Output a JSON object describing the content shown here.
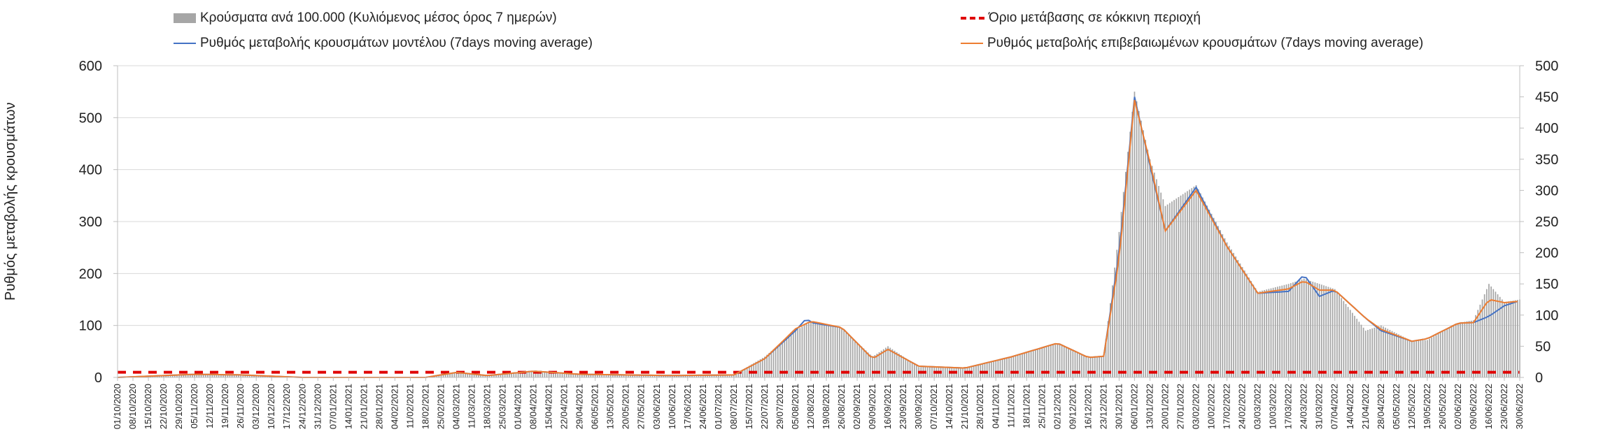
{
  "legend": {
    "bars": "Κρούσματα ανά 100.000 (Κυλιόμενος μέσος όρος 7 ημερών)",
    "threshold": "Όριο μετάβασης σε κόκκινη περιοχή",
    "model": "Ρυθμός μεταβολής κρουσμάτων μοντέλου (7days moving average)",
    "confirmed": "Ρυθμός μεταβολής επιβεβαιωμένων κρουσμάτων (7days moving average)"
  },
  "chart_data": {
    "type": "bar",
    "title": "",
    "ylabel": "Ρυθμός μεταβολής κρουσμάτων",
    "ylim": [
      0,
      600
    ],
    "y_ticks": [
      0,
      100,
      200,
      300,
      400,
      500,
      600
    ],
    "y2lim": [
      0,
      500
    ],
    "y2_ticks": [
      0,
      50,
      100,
      150,
      200,
      250,
      300,
      350,
      400,
      450,
      500
    ],
    "grid": true,
    "legend_position": "top",
    "x_date_range": [
      "2020-10-01",
      "2022-06-30"
    ],
    "x_tick_labels": [
      "01/10/2020",
      "08/10/2020",
      "15/10/2020",
      "22/10/2020",
      "29/10/2020",
      "05/11/2020",
      "12/11/2020",
      "19/11/2020",
      "26/11/2020",
      "03/12/2020",
      "10/12/2020",
      "17/12/2020",
      "24/12/2020",
      "31/12/2020",
      "07/01/2021",
      "14/01/2021",
      "21/01/2021",
      "28/01/2021",
      "04/02/2021",
      "11/02/2021",
      "18/02/2021",
      "25/02/2021",
      "04/03/2021",
      "11/03/2021",
      "18/03/2021",
      "25/03/2021",
      "01/04/2021",
      "08/04/2021",
      "15/04/2021",
      "22/04/2021",
      "29/04/2021",
      "06/05/2021",
      "13/05/2021",
      "20/05/2021",
      "27/05/2021",
      "03/06/2021",
      "10/06/2021",
      "17/06/2021",
      "24/06/2021",
      "01/07/2021",
      "08/07/2021",
      "15/07/2021",
      "22/07/2021",
      "29/07/2021",
      "05/08/2021",
      "12/08/2021",
      "19/08/2021",
      "26/08/2021",
      "02/09/2021",
      "09/09/2021",
      "16/09/2021",
      "23/09/2021",
      "30/09/2021",
      "07/10/2021",
      "14/10/2021",
      "21/10/2021",
      "28/10/2021",
      "04/11/2021",
      "11/11/2021",
      "18/11/2021",
      "25/11/2021",
      "02/12/2021",
      "09/12/2021",
      "16/12/2021",
      "23/12/2021",
      "30/12/2021",
      "06/01/2022",
      "13/01/2022",
      "20/01/2022",
      "27/01/2022",
      "03/02/2022",
      "10/02/2022",
      "17/02/2022",
      "24/02/2022",
      "03/03/2022",
      "10/03/2022",
      "17/03/2022",
      "24/03/2022",
      "31/03/2022",
      "07/04/2022",
      "14/04/2022",
      "21/04/2022",
      "28/04/2022",
      "05/05/2022",
      "12/05/2022",
      "19/05/2022",
      "26/05/2022",
      "02/06/2022",
      "09/06/2022",
      "16/06/2022",
      "23/06/2022",
      "30/06/2022"
    ],
    "threshold_value": 10,
    "series": [
      {
        "name": "Κρούσματα ανά 100.000 (Κυλιόμενος μέσος όρος 7 ημερών)",
        "type": "bar",
        "axis": "left",
        "x": [
          "01/10/2020",
          "05/11/2020",
          "26/11/2020",
          "24/12/2020",
          "18/02/2021",
          "04/03/2021",
          "18/03/2021",
          "08/04/2021",
          "29/04/2021",
          "10/06/2021",
          "08/07/2021",
          "22/07/2021",
          "05/08/2021",
          "12/08/2021",
          "26/08/2021",
          "09/09/2021",
          "16/09/2021",
          "30/09/2021",
          "21/10/2021",
          "11/11/2021",
          "02/12/2021",
          "16/12/2021",
          "23/12/2021",
          "30/12/2021",
          "06/01/2022",
          "13/01/2022",
          "20/01/2022",
          "03/02/2022",
          "17/02/2022",
          "03/03/2022",
          "17/03/2022",
          "24/03/2022",
          "07/04/2022",
          "21/04/2022",
          "28/04/2022",
          "12/05/2022",
          "19/05/2022",
          "02/06/2022",
          "09/06/2022",
          "16/06/2022",
          "23/06/2022",
          "30/06/2022"
        ],
        "values": [
          0,
          6,
          5,
          0,
          0,
          10,
          4,
          12,
          6,
          3,
          5,
          40,
          90,
          108,
          95,
          40,
          60,
          20,
          18,
          40,
          65,
          38,
          40,
          280,
          550,
          420,
          330,
          370,
          260,
          165,
          180,
          190,
          170,
          90,
          100,
          70,
          72,
          105,
          110,
          180,
          145,
          150
        ]
      },
      {
        "name": "Ρυθμός μεταβολής κρουσμάτων μοντέλου (7days moving average)",
        "type": "line",
        "axis": "right",
        "color": "#4472c4",
        "x": [
          "01/10/2020",
          "05/11/2020",
          "26/11/2020",
          "24/12/2020",
          "18/02/2021",
          "04/03/2021",
          "18/03/2021",
          "08/04/2021",
          "29/04/2021",
          "10/06/2021",
          "08/07/2021",
          "22/07/2021",
          "05/08/2021",
          "10/08/2021",
          "12/08/2021",
          "26/08/2021",
          "09/09/2021",
          "16/09/2021",
          "30/09/2021",
          "21/10/2021",
          "11/11/2021",
          "02/12/2021",
          "16/12/2021",
          "23/12/2021",
          "30/12/2021",
          "06/01/2022",
          "13/01/2022",
          "20/01/2022",
          "03/02/2022",
          "17/02/2022",
          "03/03/2022",
          "17/03/2022",
          "24/03/2022",
          "31/03/2022",
          "07/04/2022",
          "21/04/2022",
          "28/04/2022",
          "12/05/2022",
          "19/05/2022",
          "02/06/2022",
          "09/06/2022",
          "16/06/2022",
          "23/06/2022",
          "30/06/2022"
        ],
        "values": [
          0,
          5,
          4,
          0,
          0,
          8,
          3,
          10,
          5,
          3,
          4,
          30,
          75,
          95,
          88,
          80,
          30,
          45,
          18,
          15,
          33,
          55,
          32,
          34,
          200,
          450,
          340,
          235,
          305,
          210,
          135,
          138,
          165,
          130,
          140,
          95,
          75,
          58,
          62,
          87,
          88,
          98,
          115,
          123
        ]
      },
      {
        "name": "Ρυθμός μεταβολής επιβεβαιωμένων κρουσμάτων (7days moving average)",
        "type": "line",
        "axis": "right",
        "color": "#ed7d31",
        "x": [
          "01/10/2020",
          "05/11/2020",
          "26/11/2020",
          "24/12/2020",
          "18/02/2021",
          "04/03/2021",
          "18/03/2021",
          "08/04/2021",
          "29/04/2021",
          "10/06/2021",
          "08/07/2021",
          "22/07/2021",
          "05/08/2021",
          "12/08/2021",
          "26/08/2021",
          "09/09/2021",
          "16/09/2021",
          "30/09/2021",
          "21/10/2021",
          "11/11/2021",
          "02/12/2021",
          "16/12/2021",
          "23/12/2021",
          "30/12/2021",
          "06/01/2022",
          "13/01/2022",
          "20/01/2022",
          "03/02/2022",
          "17/02/2022",
          "03/03/2022",
          "17/03/2022",
          "24/03/2022",
          "31/03/2022",
          "07/04/2022",
          "21/04/2022",
          "28/04/2022",
          "12/05/2022",
          "19/05/2022",
          "02/06/2022",
          "09/06/2022",
          "16/06/2022",
          "23/06/2022",
          "30/06/2022"
        ],
        "values": [
          0,
          5,
          4,
          0,
          0,
          8,
          3,
          10,
          5,
          3,
          4,
          30,
          78,
          90,
          80,
          30,
          45,
          18,
          15,
          33,
          55,
          32,
          34,
          190,
          445,
          345,
          235,
          300,
          210,
          135,
          142,
          155,
          140,
          140,
          95,
          77,
          58,
          62,
          87,
          88,
          125,
          120,
          122
        ]
      },
      {
        "name": "Όριο μετάβασης σε κόκκινη περιοχή",
        "type": "line",
        "axis": "left",
        "color": "#e00000",
        "dashed": true,
        "x": [
          "01/10/2020",
          "30/06/2022"
        ],
        "values": [
          10,
          10
        ]
      }
    ]
  }
}
